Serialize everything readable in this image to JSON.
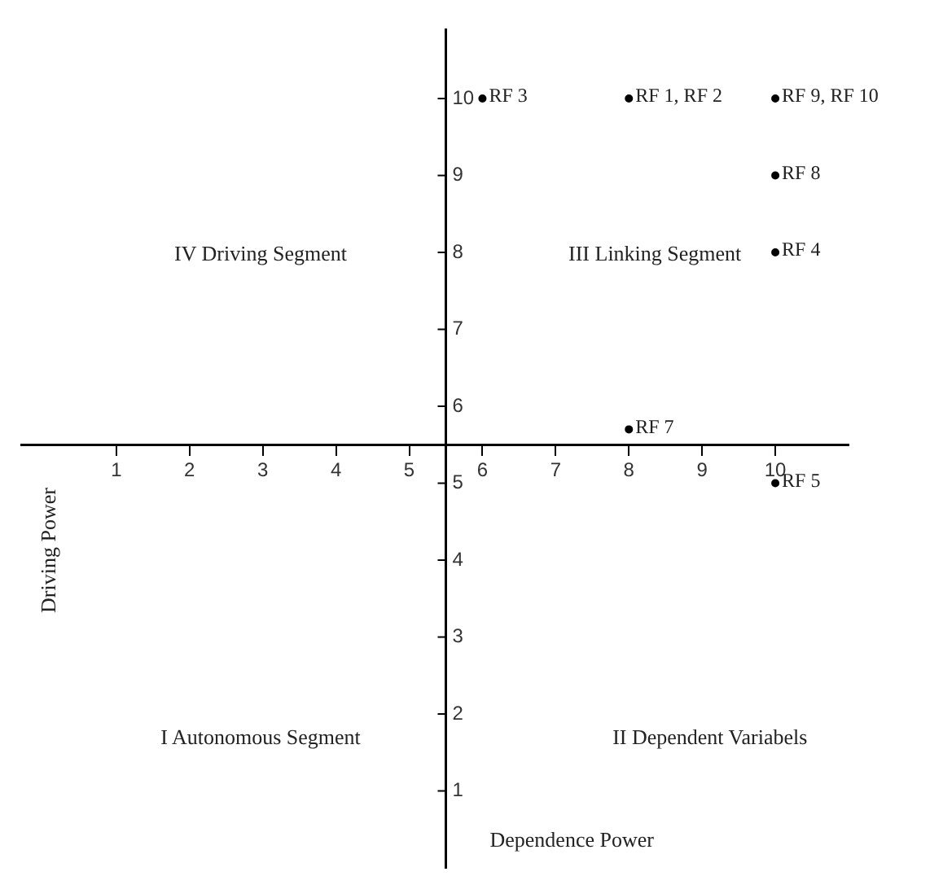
{
  "chart_data": {
    "type": "scatter",
    "xlabel": "Dependence Power",
    "ylabel": "Driving Power",
    "x": [
      6,
      8,
      10,
      10,
      10,
      8,
      10
    ],
    "values": [
      10,
      10,
      10,
      9,
      8,
      5.7,
      5
    ],
    "color": "#000000",
    "marker": "circle",
    "grid": false,
    "legend": false,
    "xlim": [
      -0.3,
      11
    ],
    "ylim": [
      0,
      10.9
    ],
    "xticks": [
      1,
      2,
      3,
      4,
      5,
      6,
      7,
      8,
      9,
      10
    ],
    "yticks": [
      1,
      2,
      3,
      4,
      5,
      6,
      7,
      8,
      9,
      10
    ],
    "annotations": [
      "IV Driving Segment",
      "III Linking Segment",
      "I Autonomous Segment",
      "II Dependent Variabels",
      {
        "text": "RF 3",
        "x": 6,
        "y": 10
      },
      {
        "text": "RF 1, RF 2",
        "x": 8,
        "y": 10
      },
      {
        "text": "RF 9, RF 10",
        "x": 10,
        "y": 10
      },
      {
        "text": "RF 8",
        "x": 10,
        "y": 9
      },
      {
        "text": "RF 4",
        "x": 10,
        "y": 8
      },
      {
        "text": "RF 7",
        "x": 8,
        "y": 5.7
      },
      {
        "text": "RF 5",
        "x": 10,
        "y": 5
      }
    ]
  }
}
